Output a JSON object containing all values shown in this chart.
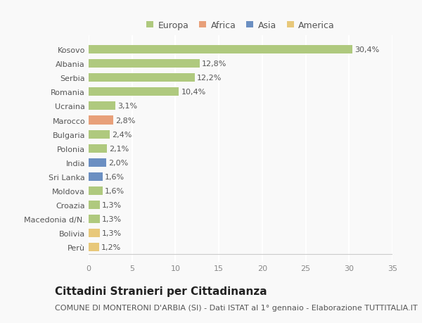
{
  "categories": [
    "Kosovo",
    "Albania",
    "Serbia",
    "Romania",
    "Ucraina",
    "Marocco",
    "Bulgaria",
    "Polonia",
    "India",
    "Sri Lanka",
    "Moldova",
    "Croazia",
    "Macedonia d/N.",
    "Bolivia",
    "Perù"
  ],
  "values": [
    30.4,
    12.8,
    12.2,
    10.4,
    3.1,
    2.8,
    2.4,
    2.1,
    2.0,
    1.6,
    1.6,
    1.3,
    1.3,
    1.3,
    1.2
  ],
  "labels": [
    "30,4%",
    "12,8%",
    "12,2%",
    "10,4%",
    "3,1%",
    "2,8%",
    "2,4%",
    "2,1%",
    "2,0%",
    "1,6%",
    "1,6%",
    "1,3%",
    "1,3%",
    "1,3%",
    "1,2%"
  ],
  "continents": [
    "Europa",
    "Europa",
    "Europa",
    "Europa",
    "Europa",
    "Africa",
    "Europa",
    "Europa",
    "Asia",
    "Asia",
    "Europa",
    "Europa",
    "Europa",
    "America",
    "America"
  ],
  "colors": {
    "Europa": "#afc97e",
    "Africa": "#e8a07a",
    "Asia": "#6b8fc2",
    "America": "#e8c87a"
  },
  "xlim": [
    0,
    35
  ],
  "xticks": [
    0,
    5,
    10,
    15,
    20,
    25,
    30,
    35
  ],
  "title": "Cittadini Stranieri per Cittadinanza",
  "subtitle": "COMUNE DI MONTERONI D'ARBIA (SI) - Dati ISTAT al 1° gennaio - Elaborazione TUTTITALIA.IT",
  "background_color": "#f9f9f9",
  "grid_color": "#ffffff",
  "bar_height": 0.6,
  "title_fontsize": 11,
  "subtitle_fontsize": 8,
  "label_fontsize": 8,
  "tick_fontsize": 8,
  "legend_fontsize": 9
}
